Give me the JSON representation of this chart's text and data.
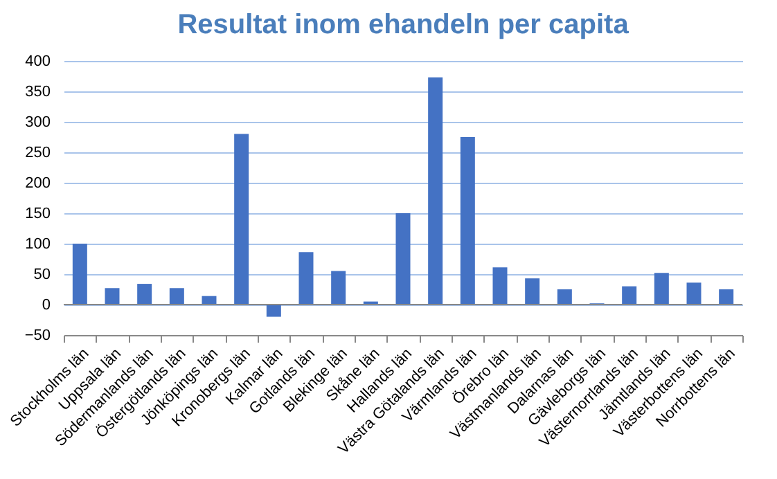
{
  "chart_data": {
    "type": "bar",
    "title": "Resultat inom ehandeln per capita",
    "categories": [
      "Stockholms län",
      "Uppsala län",
      "Södermanlands län",
      "Östergötlands län",
      "Jönköpings län",
      "Kronobergs län",
      "Kalmar län",
      "Gotlands län",
      "Blekinge län",
      "Skåne län",
      "Hallands län",
      "Västra Götalands län",
      "Värmlands län",
      "Örebro län",
      "Västmanlands län",
      "Dalarnas län",
      "Gävleborgs län",
      "Västernorrlands län",
      "Jämtlands län",
      "Västerbottens län",
      "Norrbottens län"
    ],
    "values": [
      100,
      27,
      34,
      27,
      14,
      280,
      -20,
      86,
      55,
      5,
      150,
      373,
      275,
      61,
      43,
      25,
      2,
      30,
      52,
      36,
      25
    ],
    "color": "#4472c4",
    "ylim": [
      -50,
      400
    ],
    "yticks": [
      -50,
      0,
      50,
      100,
      150,
      200,
      250,
      300,
      350,
      400
    ],
    "grid": "y"
  }
}
